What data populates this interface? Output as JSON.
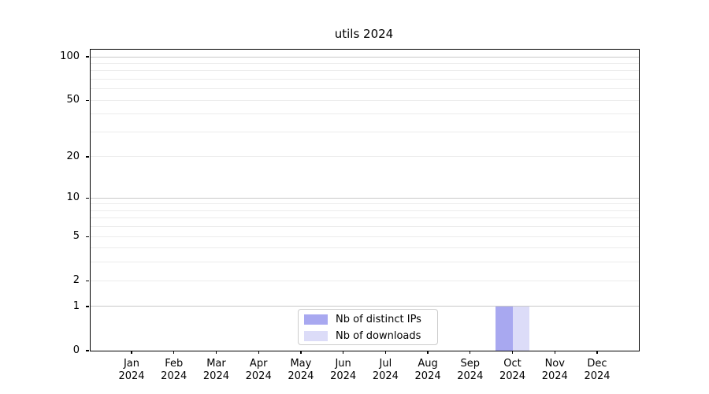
{
  "chart_data": {
    "type": "bar",
    "title": "utils 2024",
    "x": {
      "months": [
        "Jan",
        "Feb",
        "Mar",
        "Apr",
        "May",
        "Jun",
        "Jul",
        "Aug",
        "Sep",
        "Oct",
        "Nov",
        "Dec"
      ],
      "year": "2024"
    },
    "series": [
      {
        "name": "Nb of distinct IPs",
        "color": "#a8a8f0",
        "values": [
          0,
          0,
          0,
          0,
          0,
          0,
          0,
          0,
          0,
          1,
          0,
          0
        ]
      },
      {
        "name": "Nb of downloads",
        "color": "#dcdcf8",
        "values": [
          0,
          0,
          0,
          0,
          0,
          0,
          0,
          0,
          0,
          1,
          0,
          0
        ]
      }
    ],
    "y_axis": {
      "scale": "log1p",
      "tick_labels": [
        0,
        1,
        2,
        5,
        10,
        20,
        50,
        100
      ],
      "gridlines_major": [
        1,
        10,
        100
      ],
      "gridlines_minor": [
        2,
        3,
        4,
        5,
        6,
        7,
        8,
        9,
        20,
        30,
        40,
        50,
        60,
        70,
        80,
        90
      ],
      "top_value": 112,
      "ylim": [
        0,
        112
      ]
    },
    "legend": {
      "position": "lower center",
      "entries": [
        "Nb of distinct IPs",
        "Nb of downloads"
      ]
    },
    "grid": true,
    "colors": {
      "major_gridline": "#c8c8c8",
      "minor_gridline": "#ececec",
      "axis": "#000000",
      "background": "#ffffff"
    }
  }
}
